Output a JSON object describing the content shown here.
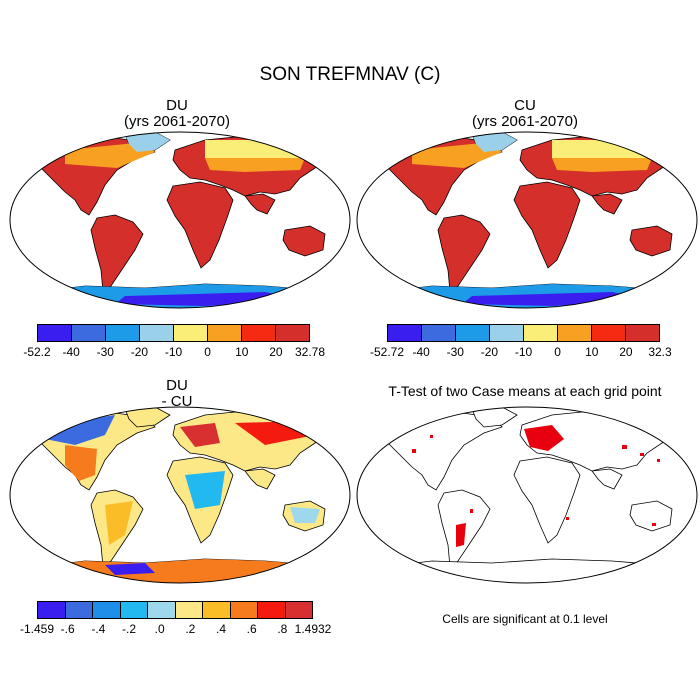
{
  "title": "SON TREFMNAV (C)",
  "panels": {
    "du": {
      "name": "DU",
      "years": "(yrs 2061-2070)",
      "ticks": [
        "-52.2",
        "-40",
        "-30",
        "-20",
        "-10",
        "0",
        "10",
        "20",
        "32.78"
      ]
    },
    "cu": {
      "name": "CU",
      "years": "(yrs 2061-2070)",
      "ticks": [
        "-52.72",
        "-40",
        "-30",
        "-20",
        "-10",
        "0",
        "10",
        "20",
        "32.3"
      ]
    },
    "diff": {
      "name": "DU",
      "sub": "- CU",
      "ticks": [
        "-1.459",
        "-.6",
        "-.4",
        "-.2",
        ".0",
        ".2",
        ".4",
        ".6",
        ".8",
        "1.4932"
      ]
    },
    "ttest": {
      "title": "T-Test of two Case means at each grid point",
      "note": "Cells are significant at 0.1 level"
    }
  },
  "colors": {
    "abs_scale": [
      "#3a1ef0",
      "#3c6be0",
      "#1e9be8",
      "#9bd0ea",
      "#fbee78",
      "#f8a022",
      "#f52a12",
      "#d52f2c"
    ],
    "diff_scale": [
      "#3a1ef0",
      "#3c6be0",
      "#1e8ee8",
      "#22b8f0",
      "#9dd8ec",
      "#fde887",
      "#fbbd27",
      "#f57b1c",
      "#f51a10",
      "#d83030"
    ],
    "significant": "#e8000e"
  }
}
